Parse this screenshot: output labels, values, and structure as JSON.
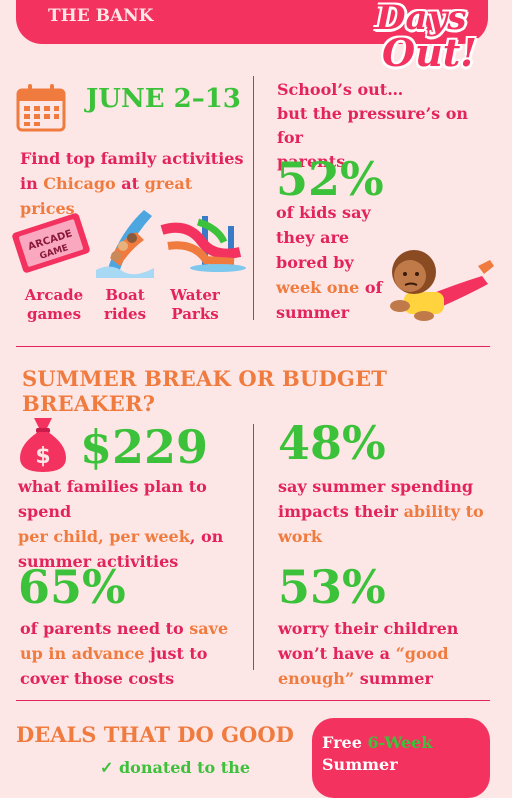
{
  "header": {
    "bank_name": "THE BANK",
    "logo_line1": "Days",
    "logo_line2": "Out!"
  },
  "event": {
    "date": "JUNE 2–13",
    "lead_parts": [
      "Find top family activities in ",
      "Chicago",
      " at ",
      "great prices"
    ],
    "activities": [
      {
        "label_lines": [
          "Arcade",
          "games"
        ],
        "icon": "arcade-ticket-icon"
      },
      {
        "label_lines": [
          "Boat",
          "rides"
        ],
        "icon": "boat-ride-icon"
      },
      {
        "label_lines": [
          "Water",
          "Parks"
        ],
        "icon": "water-slide-icon"
      }
    ]
  },
  "school": {
    "intro_lines": [
      "School’s out…",
      "but the pressure’s on for",
      "parents"
    ],
    "stat": "52%",
    "desc_lines": [
      "of kids say",
      "they are",
      "bored by"
    ],
    "desc_highlight": "week one",
    "desc_tail": " of",
    "desc_last": "summer"
  },
  "budget": {
    "title": "SUMMER BREAK OR BUDGET BREAKER?",
    "stat1": {
      "value": "$229",
      "line1": "what families plan to spend",
      "line2_highlight": "per child, per week",
      "line2_tail": ", on",
      "line3": "summer activities"
    },
    "stat2": {
      "value": "48%",
      "line1": "say summer spending",
      "line2_head": "impacts their ",
      "line2_highlight": "ability to",
      "line3_highlight": "work"
    },
    "stat3": {
      "value": "65%",
      "line1_head": "of parents need to ",
      "line1_highlight": "save",
      "line2_highlight": "up in advance",
      "line2_tail": " just to",
      "line3": "cover those costs"
    },
    "stat4": {
      "value": "53%",
      "line1": "worry their children",
      "line2_head": "won’t have a ",
      "line2_highlight": "“good",
      "line3_highlight": "enough”",
      "line3_tail": " summer"
    }
  },
  "deals": {
    "title": "DEALS THAT DO GOOD",
    "card_text_head": "Free ",
    "card_text_highlight": "6-Week",
    "card_line2": "Summer",
    "bottom_partial": "✓ donated to the"
  },
  "colors": {
    "primary": "#e3245a",
    "accent_green": "#3cc13b",
    "accent_orange": "#f07b3f",
    "background": "#fde6e6",
    "header_red": "#f4325f"
  }
}
